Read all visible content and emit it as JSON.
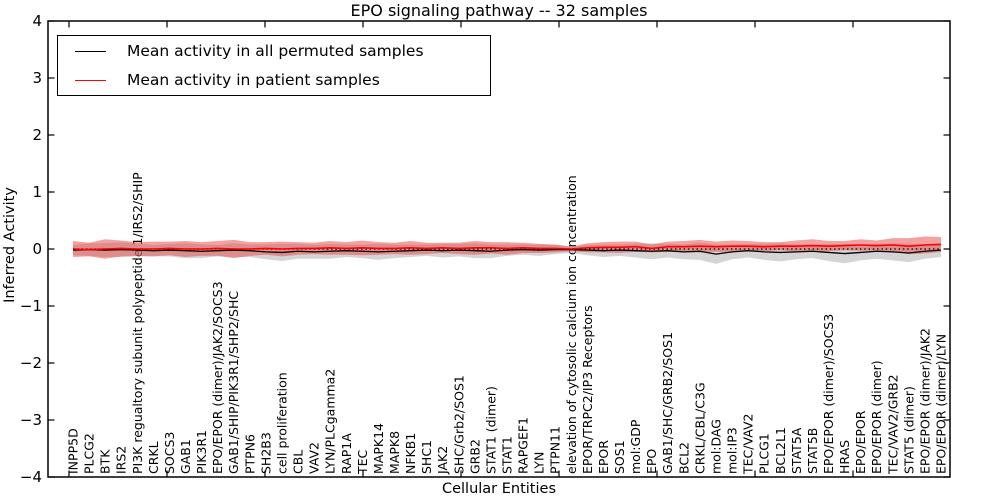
{
  "figure": {
    "title": "EPO signaling pathway -- 32 samples",
    "xlabel": "Cellular Entities",
    "ylabel": "Inferred Activity"
  },
  "colors": {
    "permuted_line": "#000000",
    "patient_line": "#ff0000",
    "permuted_band": "#999999",
    "patient_band": "#e84545",
    "axis": "#000000",
    "background": "#ffffff"
  },
  "chart_data": {
    "type": "line",
    "title": "EPO signaling pathway -- 32 samples",
    "xlabel": "Cellular Entities",
    "ylabel": "Inferred Activity",
    "ylim": [
      -4,
      4
    ],
    "yticks": [
      -4,
      -3,
      -2,
      -1,
      0,
      1,
      2,
      3,
      4
    ],
    "grid": false,
    "legend_position": "upper left",
    "zero_line": {
      "y": 0,
      "style": "dotted",
      "color": "#000000"
    },
    "categories": [
      "INPP5D",
      "PLCG2",
      "BTK",
      "IRS2",
      "PI3K regualtory subunit polypeptide 1/IRS2/SHIP",
      "CRKL",
      "SOCS3",
      "GAB1",
      "PIK3R1",
      "EPO/EPOR (dimer)/JAK2/SOCS3",
      "GAB1/SHIP/PIK3R1/SHP2/SHC",
      "PTPN6",
      "SH2B3",
      "cell proliferation",
      "CBL",
      "VAV2",
      "LYN/PLCgamma2",
      "RAP1A",
      "TEC",
      "MAPK14",
      "MAPK8",
      "NFKB1",
      "SHC1",
      "JAK2",
      "SHC/Grb2/SOS1",
      "GRB2",
      "STAT1 (dimer)",
      "STAT1",
      "RAPGEF1",
      "LYN",
      "PTPN11",
      "elevation of cytosolic calcium ion concentration",
      "EPOR/TRPC2/IP3 Receptors",
      "EPOR",
      "SOS1",
      "mol:GDP",
      "EPO",
      "GAB1/SHC/GRB2/SOS1",
      "BCL2",
      "CRKL/CBL/C3G",
      "mol:DAG",
      "mol:IP3",
      "TEC/VAV2",
      "PLCG1",
      "BCL2L1",
      "STAT5A",
      "STAT5B",
      "EPO/EPOR (dimer)/SOCS3",
      "HRAS",
      "EPO/EPOR",
      "EPO/EPOR (dimer)",
      "TEC/VAV2/GRB2",
      "STAT5 (dimer)",
      "EPO/EPOR (dimer)/JAK2",
      "EPO/EPOR (dimer)/LYN"
    ],
    "series": [
      {
        "name": "Mean activity in all permuted samples",
        "color": "#000000",
        "style": "solid",
        "values": [
          -0.02,
          -0.01,
          -0.02,
          -0.01,
          -0.02,
          -0.03,
          -0.02,
          -0.03,
          -0.04,
          -0.03,
          -0.02,
          -0.03,
          -0.05,
          -0.06,
          -0.04,
          -0.05,
          -0.04,
          -0.03,
          -0.04,
          -0.05,
          -0.04,
          -0.03,
          -0.02,
          -0.03,
          -0.02,
          -0.03,
          -0.04,
          -0.02,
          -0.01,
          -0.02,
          -0.01,
          -0.01,
          -0.02,
          -0.03,
          -0.02,
          -0.03,
          -0.04,
          -0.03,
          -0.05,
          -0.04,
          -0.09,
          -0.05,
          -0.03,
          -0.05,
          -0.06,
          -0.05,
          -0.04,
          -0.06,
          -0.08,
          -0.06,
          -0.04,
          -0.05,
          -0.07,
          -0.04,
          -0.02
        ]
      },
      {
        "name": "Mean activity in patient samples",
        "color": "#ff0000",
        "style": "solid",
        "values": [
          0.0,
          -0.01,
          0.0,
          0.01,
          0.0,
          0.0,
          0.01,
          0.0,
          0.0,
          0.01,
          0.0,
          0.0,
          0.01,
          0.0,
          0.01,
          0.01,
          0.02,
          0.01,
          0.02,
          0.01,
          0.01,
          0.02,
          0.01,
          0.02,
          0.01,
          0.02,
          0.02,
          0.01,
          0.02,
          0.01,
          0.01,
          0.0,
          0.02,
          0.03,
          0.03,
          0.04,
          0.01,
          0.04,
          0.04,
          0.05,
          0.04,
          0.05,
          0.05,
          0.04,
          0.05,
          0.05,
          0.06,
          0.05,
          0.06,
          0.07,
          0.06,
          0.07,
          0.05,
          0.07,
          0.08
        ]
      }
    ],
    "bands": [
      {
        "name": "permuted samples +/- std",
        "series": "Mean activity in all permuted samples",
        "color": "#999999",
        "opacity": 0.42,
        "half_width": [
          0.09,
          0.11,
          0.12,
          0.13,
          0.11,
          0.1,
          0.11,
          0.13,
          0.12,
          0.1,
          0.12,
          0.11,
          0.13,
          0.15,
          0.13,
          0.12,
          0.13,
          0.11,
          0.12,
          0.14,
          0.12,
          0.11,
          0.1,
          0.12,
          0.11,
          0.13,
          0.12,
          0.1,
          0.09,
          0.1,
          0.08,
          0.06,
          0.09,
          0.11,
          0.1,
          0.12,
          0.14,
          0.12,
          0.13,
          0.15,
          0.17,
          0.13,
          0.12,
          0.14,
          0.16,
          0.13,
          0.12,
          0.15,
          0.17,
          0.14,
          0.13,
          0.15,
          0.16,
          0.13,
          0.12
        ]
      },
      {
        "name": "patient samples +/- std",
        "series": "Mean activity in patient samples",
        "color": "#e84545",
        "opacity": 0.5,
        "half_width": [
          0.14,
          0.12,
          0.17,
          0.14,
          0.12,
          0.13,
          0.12,
          0.14,
          0.12,
          0.13,
          0.16,
          0.12,
          0.11,
          0.13,
          0.11,
          0.1,
          0.12,
          0.11,
          0.13,
          0.11,
          0.1,
          0.12,
          0.1,
          0.09,
          0.1,
          0.12,
          0.1,
          0.11,
          0.09,
          0.08,
          0.07,
          0.04,
          0.08,
          0.09,
          0.1,
          0.09,
          0.07,
          0.09,
          0.1,
          0.11,
          0.09,
          0.1,
          0.09,
          0.08,
          0.07,
          0.1,
          0.11,
          0.09,
          0.08,
          0.1,
          0.09,
          0.12,
          0.14,
          0.15,
          0.13
        ]
      }
    ]
  }
}
